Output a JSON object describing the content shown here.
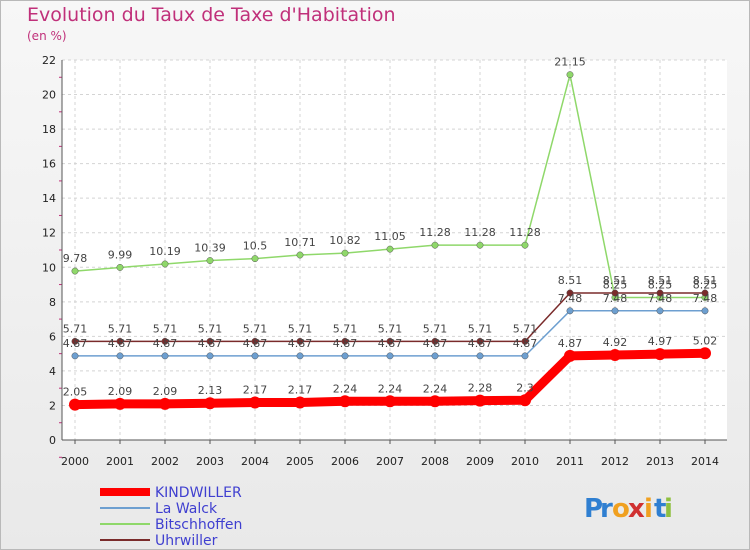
{
  "chart_data": {
    "type": "line",
    "title": "Evolution du Taux de Taxe d'Habitation",
    "subtitle": "(en %)",
    "x": [
      "2000",
      "2001",
      "2002",
      "2003",
      "2004",
      "2005",
      "2006",
      "2007",
      "2008",
      "2009",
      "2010",
      "2011",
      "2012",
      "2013",
      "2014"
    ],
    "ylim": [
      0,
      22
    ],
    "yticks": [
      0,
      2,
      4,
      6,
      8,
      10,
      12,
      14,
      16,
      18,
      20,
      22
    ],
    "grid": true,
    "legend_placement": "bottom-left",
    "series": [
      {
        "name": "KINDWILLER",
        "color": "#ff0000",
        "values": [
          2.05,
          2.09,
          2.09,
          2.13,
          2.17,
          2.17,
          2.24,
          2.24,
          2.24,
          2.28,
          2.3,
          4.87,
          4.92,
          4.97,
          5.02
        ],
        "labels": [
          "2.05",
          "2.09",
          "2.09",
          "2.13",
          "2.17",
          "2.17",
          "2.24",
          "2.24",
          "2.24",
          "2.28",
          "2.3",
          "4.87",
          "4.92",
          "4.97",
          "5.02"
        ]
      },
      {
        "name": "La Walck",
        "color": "#6d9fd0",
        "values": [
          4.87,
          4.87,
          4.87,
          4.87,
          4.87,
          4.87,
          4.87,
          4.87,
          4.87,
          4.87,
          4.87,
          7.48,
          7.48,
          7.48,
          7.48
        ],
        "labels": [
          "4.87",
          "4.87",
          "4.87",
          "4.87",
          "4.87",
          "4.87",
          "4.87",
          "4.87",
          "4.87",
          "4.87",
          "4.87",
          "7.48",
          "7.48",
          "7.48",
          "7.48"
        ]
      },
      {
        "name": "Bitschhoffen",
        "color": "#8fd86a",
        "values": [
          9.78,
          9.99,
          10.19,
          10.39,
          10.5,
          10.71,
          10.82,
          11.05,
          11.28,
          11.28,
          11.28,
          21.15,
          8.25,
          8.25,
          8.25
        ],
        "labels": [
          "9.78",
          "9.99",
          "10.19",
          "10.39",
          "10.5",
          "10.71",
          "10.82",
          "11.05",
          "11.28",
          "11.28",
          "11.28",
          "21.15",
          "8.25",
          "8.25",
          "8.25"
        ]
      },
      {
        "name": "Uhrwiller",
        "color": "#7a2b2b",
        "values": [
          5.71,
          5.71,
          5.71,
          5.71,
          5.71,
          5.71,
          5.71,
          5.71,
          5.71,
          5.71,
          5.71,
          8.51,
          8.51,
          8.51,
          8.51
        ],
        "labels": [
          "5.71",
          "5.71",
          "5.71",
          "5.71",
          "5.71",
          "5.71",
          "5.71",
          "5.71",
          "5.71",
          "5.71",
          "5.71",
          "8.51",
          "8.51",
          "8.51",
          "8.51"
        ]
      }
    ]
  },
  "brand": {
    "text": "Proxiti",
    "letters": [
      "P",
      "r",
      "o",
      "x",
      "i",
      "t",
      "i"
    ],
    "colors": [
      "#2f7fd1",
      "#2f7fd1",
      "#f0a020",
      "#d03030",
      "#f0a020",
      "#2f7fd1",
      "#8fc040"
    ]
  }
}
